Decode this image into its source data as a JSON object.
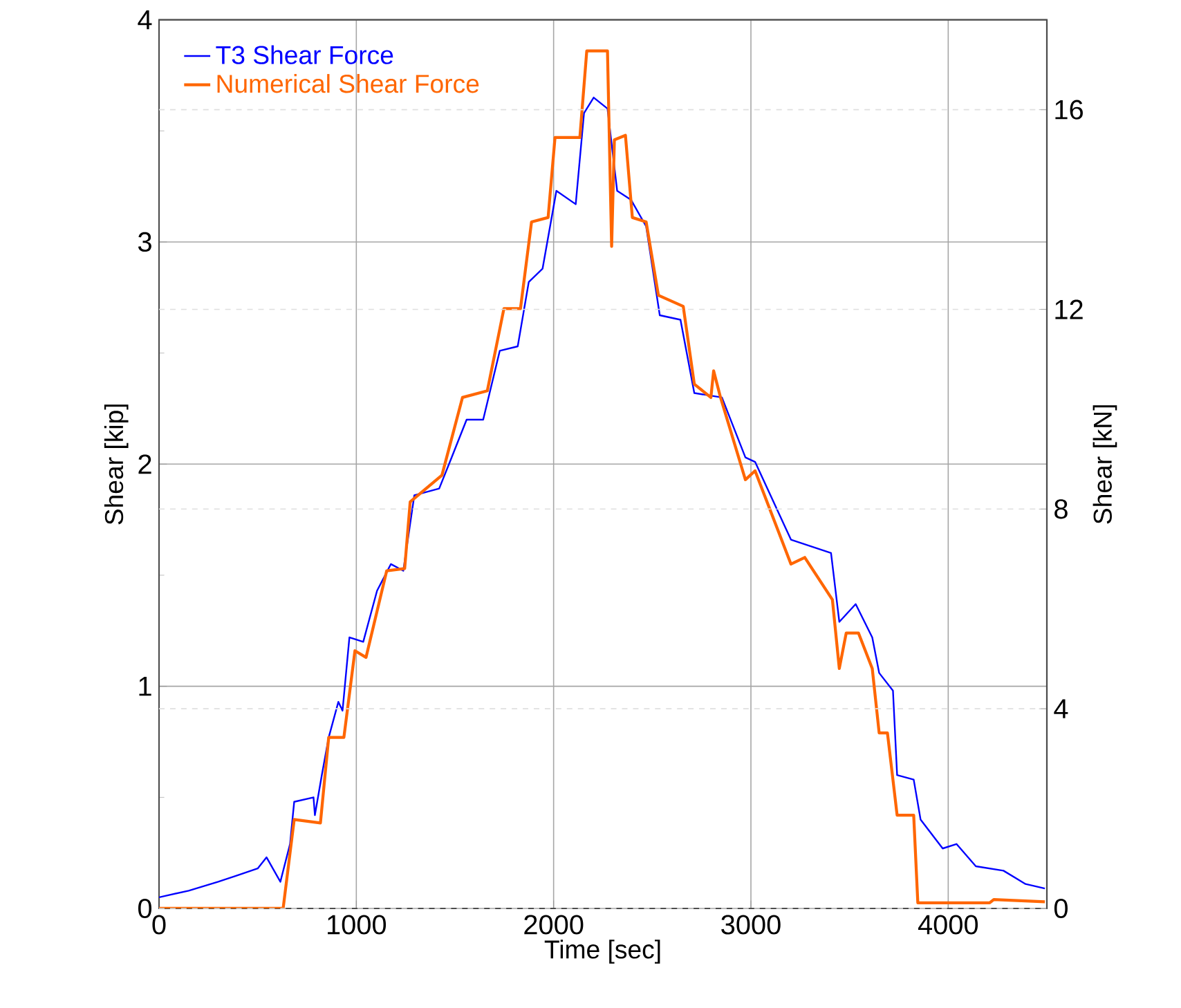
{
  "chart_data": {
    "type": "line",
    "xlabel": "Time [sec]",
    "ylabel": "Shear  [kip]",
    "y2label": "Shear [kN]",
    "xlim": [
      0,
      4500
    ],
    "xticks": [
      0,
      1000,
      2000,
      3000,
      4000
    ],
    "ylim": [
      0,
      4
    ],
    "yticks": [
      0,
      1,
      2,
      3,
      4
    ],
    "y2lim": [
      0,
      17.8
    ],
    "y2ticks": [
      0,
      4,
      8,
      12,
      16
    ],
    "grid": true,
    "legend": "top left",
    "series": [
      {
        "name": "T3 Shear Force",
        "color": "#0000ff",
        "x": [
          0,
          150,
          300,
          400,
          500,
          545,
          615,
          664,
          685,
          783,
          790,
          825,
          860,
          909,
          930,
          965,
          1035,
          1105,
          1175,
          1238,
          1294,
          1420,
          1483,
          1559,
          1643,
          1727,
          1818,
          1874,
          1944,
          2014,
          2112,
          2154,
          2203,
          2273,
          2322,
          2392,
          2469,
          2538,
          2643,
          2713,
          2853,
          2972,
          3021,
          3203,
          3406,
          3448,
          3531,
          3615,
          3650,
          3720,
          3741,
          3825,
          3860,
          3972,
          4042,
          4140,
          4280,
          4392,
          4490
        ],
        "values": [
          0.05,
          0.08,
          0.12,
          0.15,
          0.18,
          0.23,
          0.12,
          0.29,
          0.48,
          0.5,
          0.42,
          0.6,
          0.77,
          0.93,
          0.89,
          1.22,
          1.2,
          1.43,
          1.55,
          1.52,
          1.86,
          1.89,
          2.03,
          2.2,
          2.2,
          2.51,
          2.53,
          2.82,
          2.88,
          3.23,
          3.17,
          3.58,
          3.65,
          3.6,
          3.23,
          3.19,
          3.07,
          2.67,
          2.65,
          2.32,
          2.3,
          2.03,
          2.01,
          1.66,
          1.6,
          1.29,
          1.37,
          1.22,
          1.06,
          0.98,
          0.6,
          0.58,
          0.4,
          0.27,
          0.29,
          0.19,
          0.17,
          0.11,
          0.09
        ]
      },
      {
        "name": "Numerical Shear Force",
        "color": "#ff6600",
        "x": [
          0,
          629,
          685,
          818,
          860,
          937,
          993,
          1049,
          1154,
          1245,
          1273,
          1434,
          1538,
          1664,
          1748,
          1832,
          1888,
          1972,
          2007,
          2133,
          2168,
          2273,
          2294,
          2308,
          2364,
          2399,
          2469,
          2531,
          2657,
          2713,
          2797,
          2811,
          2846,
          2972,
          3021,
          3203,
          3273,
          3413,
          3448,
          3483,
          3545,
          3615,
          3650,
          3692,
          3741,
          3825,
          3846,
          4210,
          4231,
          4490
        ],
        "values": [
          0,
          0,
          0.4,
          0.385,
          0.77,
          0.77,
          1.16,
          1.13,
          1.52,
          1.53,
          1.83,
          1.95,
          2.3,
          2.33,
          2.7,
          2.7,
          3.09,
          3.11,
          3.47,
          3.47,
          3.86,
          3.86,
          2.98,
          3.46,
          3.48,
          3.11,
          3.09,
          2.76,
          2.71,
          2.36,
          2.3,
          2.42,
          2.3,
          1.93,
          1.97,
          1.55,
          1.58,
          1.39,
          1.08,
          1.24,
          1.24,
          1.08,
          0.79,
          0.79,
          0.42,
          0.42,
          0.025,
          0.025,
          0.04,
          0.03
        ]
      }
    ]
  }
}
